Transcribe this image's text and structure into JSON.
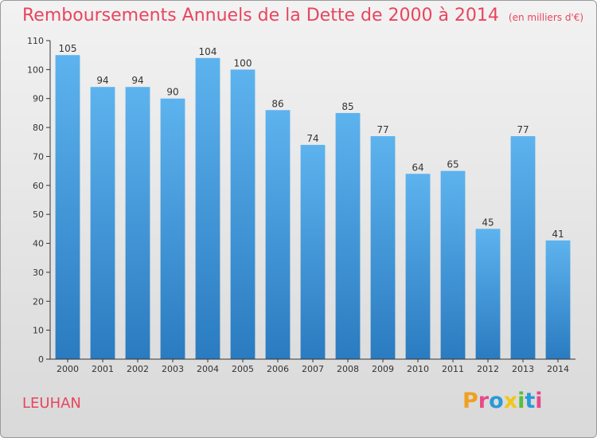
{
  "chart_data": {
    "type": "bar",
    "title": "Remboursements Annuels de la Dette de 2000 à 2014",
    "unit_label": "(en milliers d'€)",
    "categories": [
      "2000",
      "2001",
      "2002",
      "2003",
      "2004",
      "2005",
      "2006",
      "2007",
      "2008",
      "2009",
      "2010",
      "2011",
      "2012",
      "2013",
      "2014"
    ],
    "values": [
      105,
      94,
      94,
      90,
      104,
      100,
      86,
      74,
      85,
      77,
      64,
      65,
      45,
      77,
      41
    ],
    "xlabel": "",
    "ylabel": "",
    "ylim": [
      0,
      110
    ],
    "yticks": [
      "0",
      "10",
      "20",
      "30",
      "40",
      "50",
      "60",
      "70",
      "80",
      "90",
      "100",
      "110"
    ],
    "grid": false,
    "legend": "none"
  },
  "commune": "LEUHAN",
  "logo": {
    "letters": [
      "P",
      "r",
      "o",
      "x",
      "i",
      "t",
      "i"
    ],
    "colors": [
      "#f0a020",
      "#e64a8a",
      "#2a9ad8",
      "#f2c616",
      "#5bbd3c",
      "#2a9ad8",
      "#e64a8a"
    ]
  },
  "colors": {
    "title": "#e8455e",
    "bar_top": "#5db3ee",
    "bar_bottom": "#2a7bc0",
    "axis": "#333333",
    "label": "#333333"
  }
}
